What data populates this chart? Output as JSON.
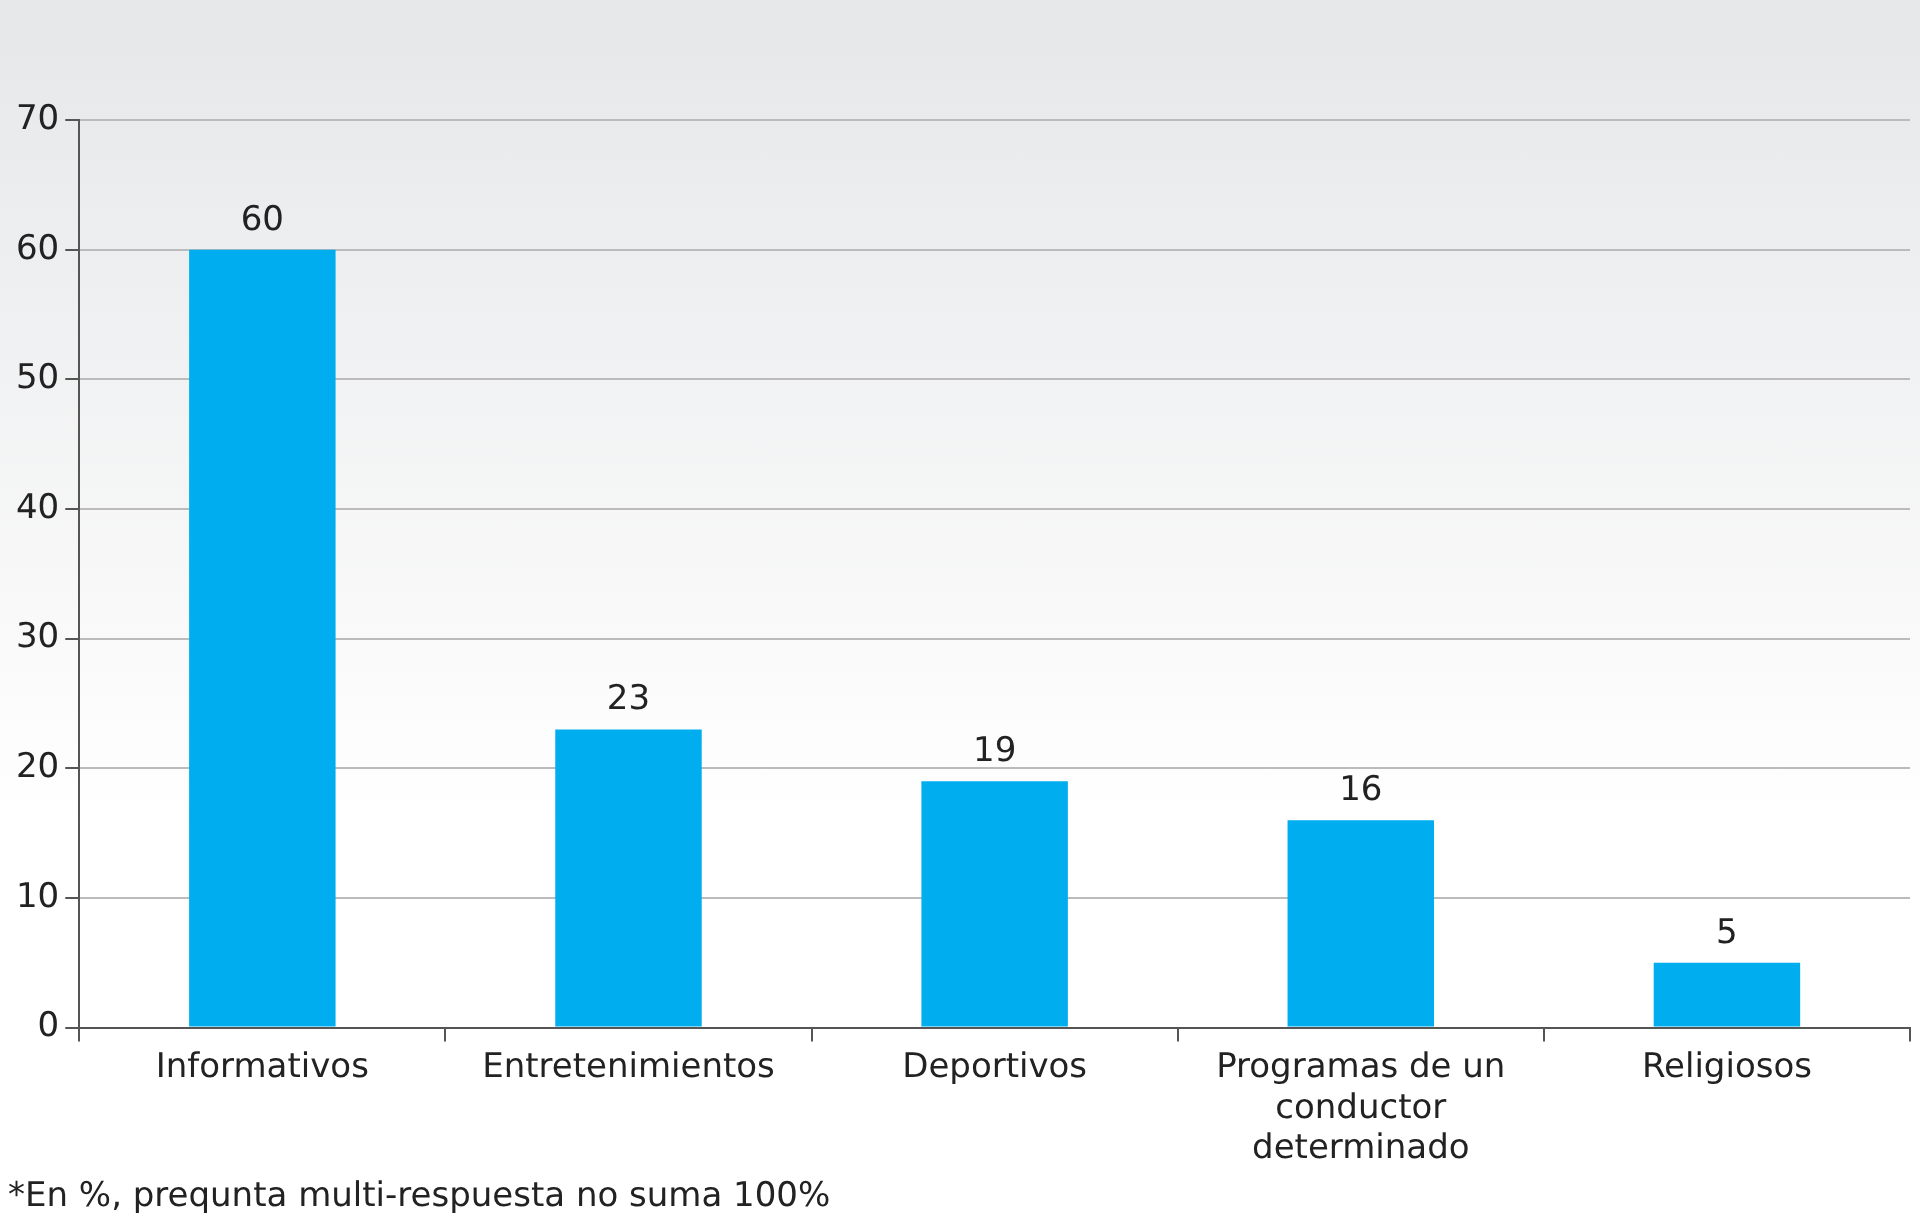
{
  "chart_data": {
    "type": "bar",
    "categories": [
      "Informativos",
      "Entretenimientos",
      "Deportivos",
      "Programas de un conductor determinado",
      "Religiosos"
    ],
    "values": [
      60,
      23,
      19,
      16,
      5
    ],
    "color": "#00adef",
    "ylim": [
      0,
      70
    ],
    "yticks": [
      0,
      10,
      20,
      30,
      40,
      50,
      60,
      70
    ],
    "grid": "y",
    "data_labels": true,
    "annotations": [
      "*En %, prequnta multi-respuesta no suma 100%"
    ]
  }
}
